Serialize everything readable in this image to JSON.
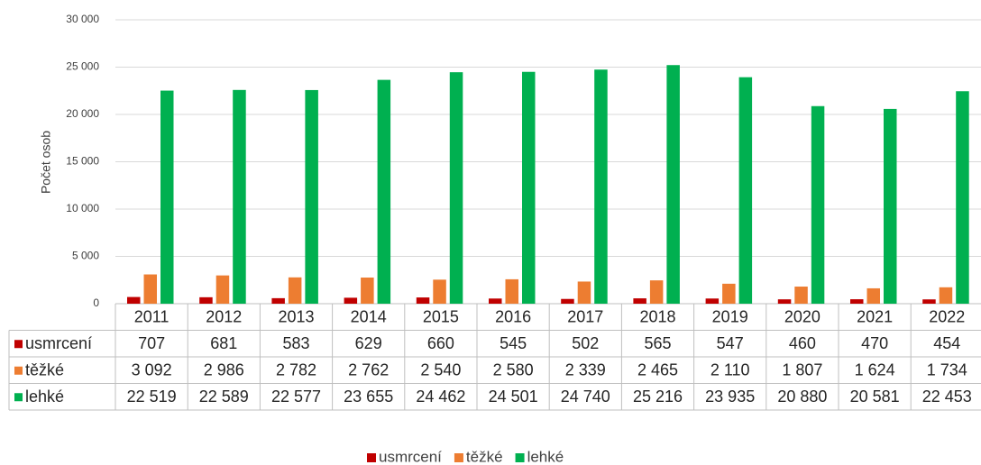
{
  "chart_data": {
    "type": "bar",
    "y_label": "Počet osob",
    "categories": [
      "2011",
      "2012",
      "2013",
      "2014",
      "2015",
      "2016",
      "2017",
      "2018",
      "2019",
      "2020",
      "2021",
      "2022"
    ],
    "series": [
      {
        "name": "usmrcení",
        "color": "#c00000",
        "values": [
          707,
          681,
          583,
          629,
          660,
          545,
          502,
          565,
          547,
          460,
          470,
          454
        ]
      },
      {
        "name": "těžké",
        "color": "#ed7d31",
        "values": [
          3092,
          2986,
          2782,
          2762,
          2540,
          2580,
          2339,
          2465,
          2110,
          1807,
          1624,
          1734
        ],
        "value_labels": [
          "3 092",
          "2 986",
          "2 782",
          "2 762",
          "2 540",
          "2 580",
          "2 339",
          "2 465",
          "2 110",
          "1 807",
          "1 624",
          "1 734"
        ]
      },
      {
        "name": "lehké",
        "color": "#00b050",
        "values": [
          22519,
          22589,
          22577,
          23655,
          24462,
          24501,
          24740,
          25216,
          23935,
          20880,
          20581,
          22453
        ],
        "value_labels": [
          "22 519",
          "22 589",
          "22 577",
          "23 655",
          "24 462",
          "24 501",
          "24 740",
          "25 216",
          "23 935",
          "20 880",
          "20 581",
          "22 453"
        ]
      }
    ],
    "ylim": [
      0,
      30000
    ],
    "yticks": [
      0,
      {
        "value": 5000,
        "label": "5 000"
      },
      {
        "value": 10000,
        "label": "10 000"
      },
      {
        "value": 15000,
        "label": "15 000"
      },
      {
        "value": 20000,
        "label": "20 000"
      },
      {
        "value": 25000,
        "label": "25 000"
      },
      {
        "value": 30000,
        "label": "30 000"
      }
    ],
    "grid": true
  }
}
